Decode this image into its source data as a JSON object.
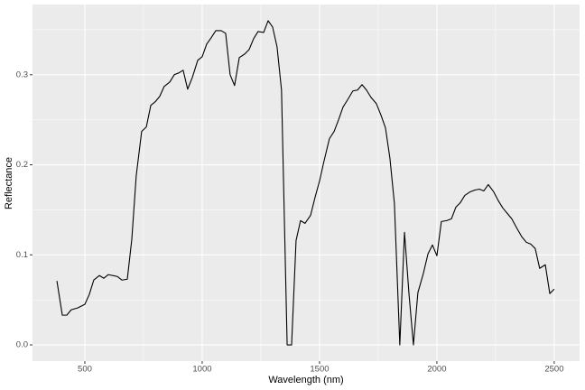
{
  "chart_data": {
    "type": "line",
    "xlabel": "Wavelength (nm)",
    "ylabel": "Reflectance",
    "color": "#000000",
    "grid": true,
    "xlim": [
      277,
      2608
    ],
    "ylim": [
      -0.018,
      0.378
    ],
    "xticks": [
      500,
      1000,
      1500,
      2000,
      2500
    ],
    "yticks": [
      {
        "value": 0,
        "label": "0.0"
      },
      0.1,
      0.2,
      0.3
    ],
    "x_minor_grid": [
      750,
      1250,
      1750,
      2250
    ],
    "y_minor_grid": [
      0.05,
      0.15,
      0.25,
      0.35
    ],
    "x": [
      381,
      404,
      423,
      442,
      469,
      500,
      519,
      538,
      562,
      581,
      600,
      638,
      658,
      681,
      700,
      719,
      742,
      762,
      781,
      800,
      819,
      838,
      862,
      881,
      900,
      919,
      938,
      958,
      981,
      1000,
      1019,
      1038,
      1058,
      1081,
      1100,
      1119,
      1138,
      1158,
      1181,
      1200,
      1219,
      1238,
      1262,
      1281,
      1300,
      1319,
      1338,
      1362,
      1381,
      1400,
      1419,
      1438,
      1462,
      1481,
      1500,
      1519,
      1542,
      1562,
      1581,
      1600,
      1619,
      1642,
      1662,
      1681,
      1700,
      1719,
      1742,
      1762,
      1781,
      1800,
      1819,
      1842,
      1862,
      1881,
      1900,
      1919,
      1942,
      1962,
      1981,
      2000,
      2019,
      2042,
      2062,
      2081,
      2100,
      2119,
      2142,
      2162,
      2181,
      2200,
      2219,
      2242,
      2262,
      2281,
      2300,
      2319,
      2342,
      2362,
      2381,
      2400,
      2419,
      2438,
      2462,
      2481,
      2500
    ],
    "values": [
      0.071,
      0.033,
      0.033,
      0.039,
      0.041,
      0.045,
      0.056,
      0.072,
      0.077,
      0.074,
      0.078,
      0.076,
      0.072,
      0.073,
      0.117,
      0.188,
      0.237,
      0.242,
      0.266,
      0.27,
      0.276,
      0.287,
      0.292,
      0.3,
      0.302,
      0.305,
      0.284,
      0.297,
      0.316,
      0.32,
      0.334,
      0.341,
      0.349,
      0.349,
      0.346,
      0.3,
      0.288,
      0.319,
      0.323,
      0.328,
      0.34,
      0.348,
      0.347,
      0.36,
      0.353,
      0.331,
      0.283,
      0.0,
      0.0,
      0.116,
      0.138,
      0.135,
      0.144,
      0.164,
      0.182,
      0.204,
      0.229,
      0.237,
      0.25,
      0.264,
      0.272,
      0.282,
      0.283,
      0.289,
      0.283,
      0.275,
      0.268,
      0.255,
      0.241,
      0.207,
      0.157,
      0.0,
      0.125,
      0.057,
      0.0,
      0.058,
      0.079,
      0.101,
      0.111,
      0.099,
      0.137,
      0.138,
      0.14,
      0.153,
      0.158,
      0.166,
      0.17,
      0.172,
      0.173,
      0.171,
      0.178,
      0.17,
      0.16,
      0.152,
      0.146,
      0.14,
      0.129,
      0.12,
      0.114,
      0.112,
      0.107,
      0.085,
      0.089,
      0.057,
      0.062
    ]
  }
}
